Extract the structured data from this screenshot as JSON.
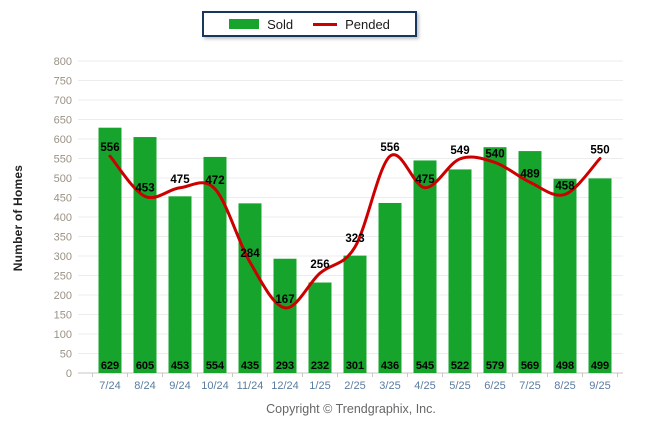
{
  "legend": {
    "sold_label": "Sold",
    "pended_label": "Pended"
  },
  "chart_data": {
    "type": "bar",
    "subtype": "bar+line combo",
    "categories": [
      "7/24",
      "8/24",
      "9/24",
      "10/24",
      "11/24",
      "12/24",
      "1/25",
      "2/25",
      "3/25",
      "4/25",
      "5/25",
      "6/25",
      "7/25",
      "8/25",
      "9/25"
    ],
    "series": [
      {
        "name": "Sold",
        "render": "bar",
        "color": "#17a42c",
        "values": [
          629,
          605,
          453,
          554,
          435,
          293,
          232,
          301,
          436,
          545,
          522,
          579,
          569,
          498,
          499
        ]
      },
      {
        "name": "Pended",
        "render": "line",
        "color": "#cc0000",
        "values": [
          556,
          453,
          475,
          472,
          284,
          167,
          256,
          323,
          556,
          475,
          549,
          540,
          489,
          458,
          550
        ]
      }
    ],
    "title": "",
    "xlabel": "",
    "ylabel": "Number of Homes",
    "ylim": [
      0,
      800
    ],
    "ytick_step": 50,
    "grid": true,
    "legend_position": "top-center",
    "value_labels": "shown on bars (bottom) and above line points"
  },
  "footer": {
    "copyright": "Copyright © Trendgraphix, Inc."
  },
  "colors": {
    "sold": "#17a42c",
    "pended": "#cc0000",
    "legend_border": "#17375e",
    "grid": "#ececec",
    "axis": "#c9c6c3",
    "y_tick_label": "#9a9186",
    "x_tick_label": "#5a7ca0",
    "value_label": "#000000",
    "ylabel_text": "#222222",
    "footer_text": "#666666"
  }
}
